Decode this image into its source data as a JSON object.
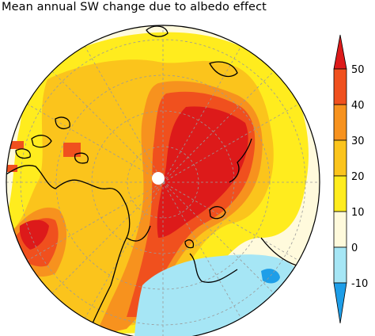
{
  "title": "Mean annual SW change due to albedo effect",
  "colorbar": {
    "ticks": [
      "50",
      "40",
      "30",
      "20",
      "10",
      "0",
      "-10"
    ],
    "bands": [
      {
        "range": "above 50",
        "color": "#dd1a1a"
      },
      {
        "range": "40 to 50",
        "color": "#f0501e"
      },
      {
        "range": "30 to 40",
        "color": "#f7921e"
      },
      {
        "range": "20 to 30",
        "color": "#fbc41c"
      },
      {
        "range": "10 to 20",
        "color": "#ffec1e"
      },
      {
        "range": "0 to 10",
        "color": "#fffadc"
      },
      {
        "range": "-10 to 0",
        "color": "#a6e6f5"
      },
      {
        "range": "below -10",
        "color": "#1e9ee8"
      }
    ]
  },
  "colors": {
    "land_outline": "#000000",
    "grid": "#9a9a9a",
    "pole_marker": "#ffffff"
  }
}
